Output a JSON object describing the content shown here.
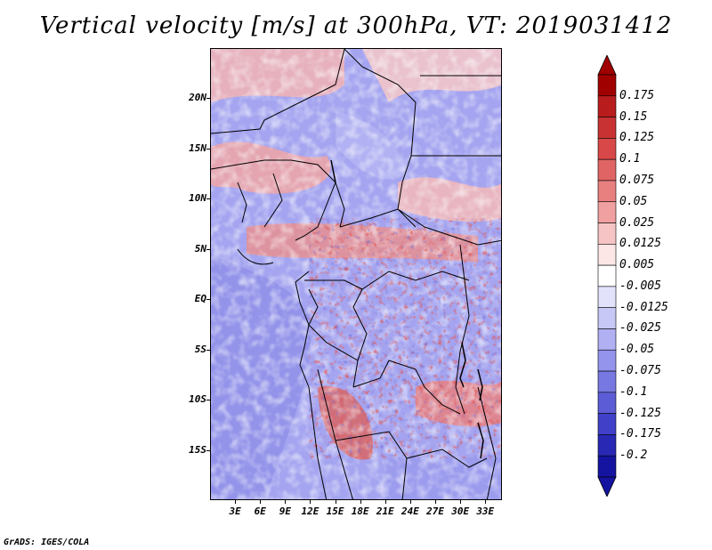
{
  "title": "Vertical velocity [m/s] at 300hPa, VT: 2019031412",
  "credit": "GrADS: IGES/COLA",
  "map": {
    "lat_labels": [
      "20N",
      "15N",
      "10N",
      "5N",
      "EQ",
      "5S",
      "10S",
      "15S"
    ],
    "lat_values": [
      20,
      15,
      10,
      5,
      0,
      -5,
      -10,
      -15
    ],
    "lon_labels": [
      "3E",
      "6E",
      "9E",
      "12E",
      "15E",
      "18E",
      "21E",
      "24E",
      "27E",
      "30E",
      "33E"
    ],
    "lon_values": [
      3,
      6,
      9,
      12,
      15,
      18,
      21,
      24,
      27,
      30,
      33
    ],
    "lat_range": [
      -20,
      25
    ],
    "lon_range": [
      0,
      35
    ]
  },
  "colorbar": {
    "labels": [
      "0.175",
      "0.15",
      "0.125",
      "0.1",
      "0.075",
      "0.05",
      "0.025",
      "0.0125",
      "0.005",
      "-0.005",
      "-0.0125",
      "-0.025",
      "-0.05",
      "-0.075",
      "-0.1",
      "-0.125",
      "-0.175",
      "-0.2"
    ],
    "colors": [
      "#a00000",
      "#b81c1c",
      "#c83232",
      "#d84848",
      "#e06464",
      "#e88080",
      "#f0a0a0",
      "#f6c4c4",
      "#fce6e6",
      "#ffffff",
      "#e2e2fb",
      "#c8c8f6",
      "#b0b0f2",
      "#9494ec",
      "#7878e2",
      "#5c5cd6",
      "#4040c8",
      "#2828b4",
      "#1414a0"
    ],
    "top_arrow_color": "#a00000",
    "bottom_arrow_color": "#1414a0"
  }
}
